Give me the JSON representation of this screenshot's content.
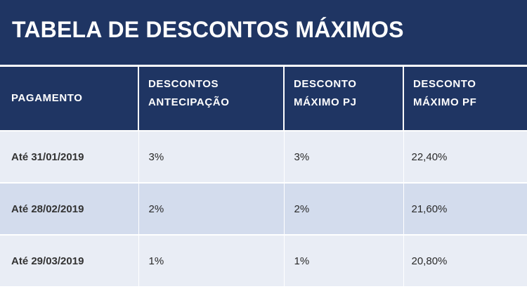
{
  "title": "TABELA DE DESCONTOS MÁXIMOS",
  "columns": [
    {
      "line1": "PAGAMENTO",
      "line2": ""
    },
    {
      "line1": "DESCONTOS",
      "line2": "ANTECIPAÇÃO"
    },
    {
      "line1": "DESCONTO",
      "line2": "MÁXIMO PJ"
    },
    {
      "line1": "DESCONTO",
      "line2": "MÁXIMO PF"
    }
  ],
  "rows": [
    [
      "Até 31/01/2019",
      "3%",
      "3%",
      "22,40%"
    ],
    [
      "Até 28/02/2019",
      "2%",
      "2%",
      "21,60%"
    ],
    [
      "Até 29/03/2019",
      "1%",
      "1%",
      "20,80%"
    ]
  ],
  "colors": {
    "header_navy": "#1f3563",
    "row_light": "#e9edf5",
    "row_mid": "#d3dced"
  }
}
